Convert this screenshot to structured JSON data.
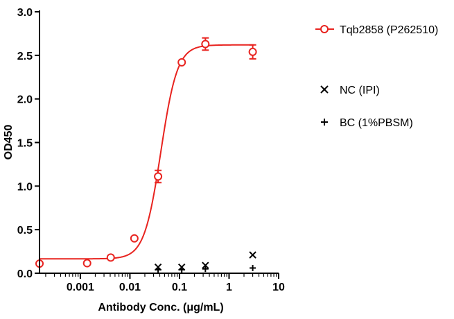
{
  "chart_data": {
    "type": "scatter",
    "xlabel": "Antibody Conc. (μg/mL)",
    "ylabel": "OD450",
    "x_scale": "log",
    "xlim": [
      0.00015,
      10
    ],
    "ylim": [
      0,
      3.0
    ],
    "x_ticks": [
      {
        "value": 0.001,
        "label": "0.001"
      },
      {
        "value": 0.01,
        "label": "0.01"
      },
      {
        "value": 0.1,
        "label": "0.1"
      },
      {
        "value": 1,
        "label": "1"
      },
      {
        "value": 10,
        "label": "10"
      }
    ],
    "y_ticks": [
      {
        "value": 0,
        "label": "0.0"
      },
      {
        "value": 0.5,
        "label": "0.5"
      },
      {
        "value": 1.0,
        "label": "1.0"
      },
      {
        "value": 1.5,
        "label": "1.5"
      },
      {
        "value": 2.0,
        "label": "2.0"
      },
      {
        "value": 2.5,
        "label": "2.5"
      },
      {
        "value": 3.0,
        "label": "3.0"
      }
    ],
    "grid": false,
    "legend_position": "right",
    "series": [
      {
        "name": "Tqb2858 (P262510)",
        "marker": "circle",
        "color": "#e8231f",
        "fit_curve": true,
        "fit": {
          "bottom": 0.165,
          "top": 2.62,
          "ec50": 0.042,
          "hill": 2.6
        },
        "points": [
          {
            "x": 0.00015,
            "y": 0.11,
            "err": 0.0
          },
          {
            "x": 0.00137,
            "y": 0.115,
            "err": 0.0
          },
          {
            "x": 0.0041,
            "y": 0.18,
            "err": 0.0
          },
          {
            "x": 0.0123,
            "y": 0.4,
            "err": 0.0
          },
          {
            "x": 0.037,
            "y": 1.11,
            "err": 0.07
          },
          {
            "x": 0.111,
            "y": 2.42,
            "err": 0.0
          },
          {
            "x": 0.333,
            "y": 2.63,
            "err": 0.07
          },
          {
            "x": 3.0,
            "y": 2.54,
            "err": 0.08
          }
        ]
      },
      {
        "name": "NC (IPI)",
        "marker": "x",
        "color": "#000000",
        "fit_curve": false,
        "points": [
          {
            "x": 0.037,
            "y": 0.07
          },
          {
            "x": 0.111,
            "y": 0.07
          },
          {
            "x": 0.333,
            "y": 0.09
          },
          {
            "x": 3.0,
            "y": 0.21
          }
        ]
      },
      {
        "name": "BC (1%PBSM)",
        "marker": "plus",
        "color": "#000000",
        "fit_curve": false,
        "points": [
          {
            "x": 0.037,
            "y": 0.04
          },
          {
            "x": 0.111,
            "y": 0.04
          },
          {
            "x": 0.333,
            "y": 0.05
          },
          {
            "x": 3.0,
            "y": 0.06
          }
        ]
      }
    ]
  }
}
